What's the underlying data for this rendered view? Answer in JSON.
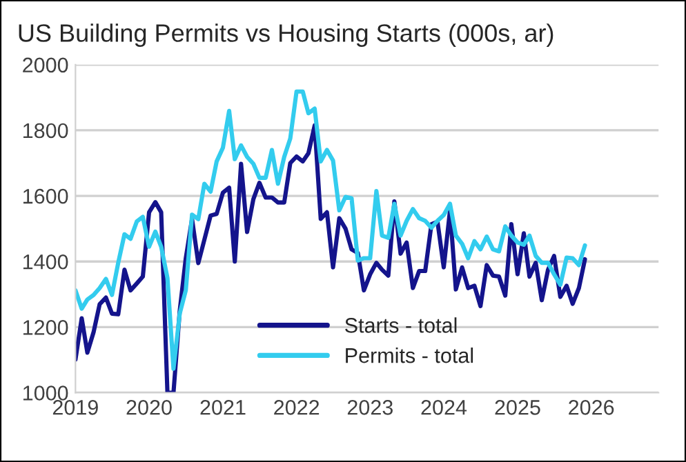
{
  "chart_data": {
    "type": "line",
    "title": "US Building Permits vs Housing Starts (000s, ar)",
    "x": [
      "2019-01",
      "2019-02",
      "2019-03",
      "2019-04",
      "2019-05",
      "2019-06",
      "2019-07",
      "2019-08",
      "2019-09",
      "2019-10",
      "2019-11",
      "2019-12",
      "2020-01",
      "2020-02",
      "2020-03",
      "2020-04",
      "2020-05",
      "2020-06",
      "2020-07",
      "2020-08",
      "2020-09",
      "2020-10",
      "2020-11",
      "2020-12",
      "2021-01",
      "2021-02",
      "2021-03",
      "2021-04",
      "2021-05",
      "2021-06",
      "2021-07",
      "2021-08",
      "2021-09",
      "2021-10",
      "2021-11",
      "2021-12",
      "2022-01",
      "2022-02",
      "2022-03",
      "2022-04",
      "2022-05",
      "2022-06",
      "2022-07",
      "2022-08",
      "2022-09",
      "2022-10",
      "2022-11",
      "2022-12",
      "2023-01",
      "2023-02",
      "2023-03",
      "2023-04",
      "2023-05",
      "2023-06",
      "2023-07",
      "2023-08",
      "2023-09",
      "2023-10",
      "2023-11",
      "2023-12",
      "2024-01",
      "2024-02",
      "2024-03",
      "2024-04",
      "2024-05",
      "2024-06",
      "2024-07",
      "2024-08",
      "2024-09",
      "2024-10",
      "2024-11",
      "2024-12",
      "2025-01",
      "2025-02",
      "2025-03",
      "2025-04",
      "2025-05",
      "2025-06",
      "2025-07",
      "2025-08",
      "2025-09",
      "2025-10",
      "2025-11",
      "2025-12"
    ],
    "series": [
      {
        "name": "Starts - total",
        "color": "#14148c",
        "values": [
          1101,
          1227,
          1122,
          1185,
          1270,
          1290,
          1241,
          1239,
          1375,
          1312,
          1333,
          1354,
          1550,
          1581,
          1550,
          1000,
          1000,
          1250,
          1410,
          1530,
          1395,
          1466,
          1540,
          1545,
          1610,
          1625,
          1400,
          1698,
          1490,
          1590,
          1640,
          1595,
          1595,
          1580,
          1580,
          1700,
          1720,
          1705,
          1730,
          1815,
          1530,
          1550,
          1382,
          1532,
          1500,
          1437,
          1426,
          1312,
          1361,
          1396,
          1375,
          1357,
          1583,
          1424,
          1458,
          1319,
          1371,
          1371,
          1514,
          1521,
          1382,
          1556,
          1315,
          1382,
          1319,
          1326,
          1264,
          1389,
          1357,
          1354,
          1296,
          1514,
          1361,
          1486,
          1354,
          1396,
          1282,
          1375,
          1417,
          1292,
          1326,
          1271,
          1319,
          1407
        ]
      },
      {
        "name": "Permits - total",
        "color": "#33ccee",
        "values": [
          1312,
          1256,
          1284,
          1298,
          1319,
          1347,
          1298,
          1396,
          1483,
          1469,
          1522,
          1536,
          1445,
          1491,
          1445,
          1350,
          1073,
          1241,
          1312,
          1543,
          1529,
          1637,
          1613,
          1705,
          1747,
          1859,
          1712,
          1754,
          1719,
          1698,
          1655,
          1655,
          1740,
          1637,
          1719,
          1775,
          1918,
          1918,
          1852,
          1866,
          1705,
          1740,
          1708,
          1556,
          1597,
          1593,
          1403,
          1410,
          1410,
          1615,
          1479,
          1472,
          1576,
          1479,
          1524,
          1560,
          1532,
          1524,
          1503,
          1524,
          1542,
          1576,
          1479,
          1454,
          1410,
          1462,
          1437,
          1476,
          1437,
          1431,
          1507,
          1479,
          1458,
          1451,
          1479,
          1417,
          1396,
          1396,
          1361,
          1329,
          1412,
          1410,
          1389,
          1449
        ]
      }
    ],
    "xlim": [
      "2019-01-01",
      "2026-12-01"
    ],
    "xticks": [
      {
        "value": "2019-01-01",
        "label": "2019"
      },
      {
        "value": "2020-01-01",
        "label": "2020"
      },
      {
        "value": "2021-01-01",
        "label": "2021"
      },
      {
        "value": "2022-01-01",
        "label": "2022"
      },
      {
        "value": "2023-01-01",
        "label": "2023"
      },
      {
        "value": "2024-01-01",
        "label": "2024"
      },
      {
        "value": "2025-01-01",
        "label": "2025"
      },
      {
        "value": "2026-01-01",
        "label": "2026"
      }
    ],
    "ylim": [
      1000,
      2000
    ],
    "yticks": [
      1000,
      1200,
      1400,
      1600,
      1800,
      2000
    ],
    "grid": "y",
    "legend": "bottom",
    "line_style": "solid",
    "marker": "none"
  }
}
